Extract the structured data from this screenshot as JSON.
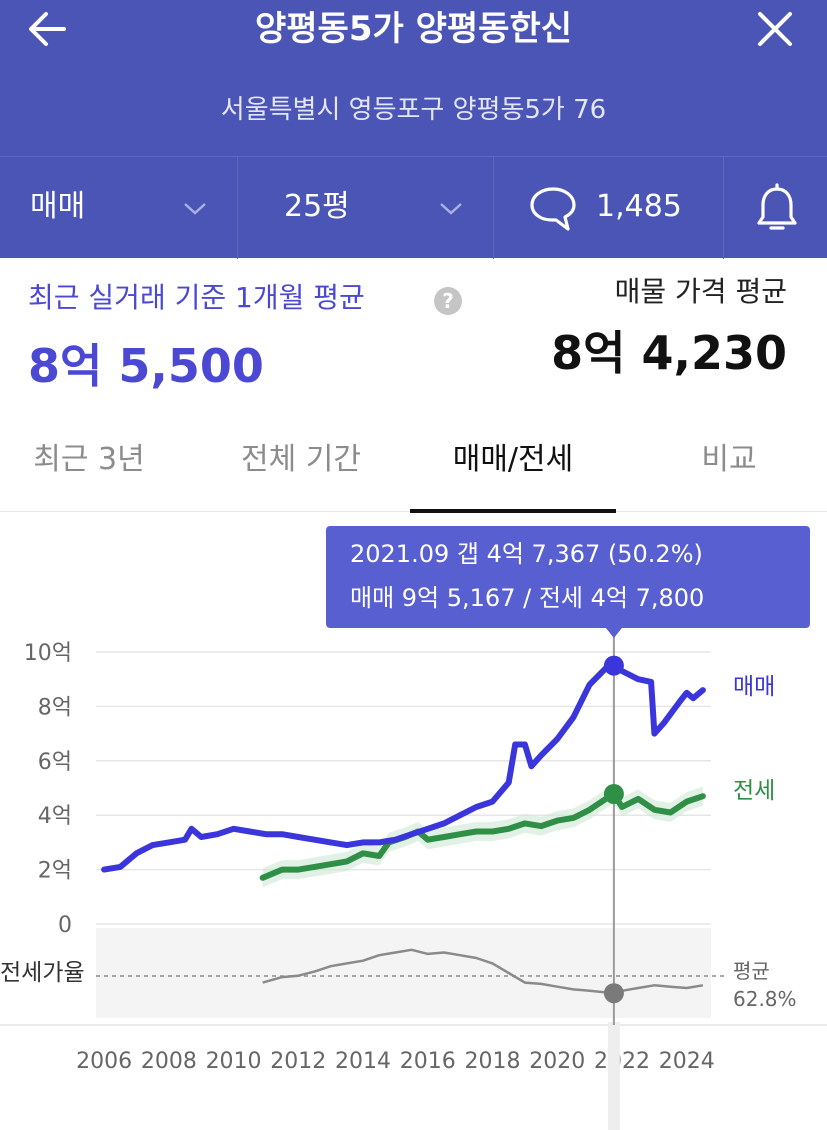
{
  "header": {
    "title": "양평동5가 양평동한신",
    "address": "서울특별시 영등포구 양평동5가 76"
  },
  "filters": {
    "trade_type": "매매",
    "area": "25평",
    "comment_count": "1,485"
  },
  "summary": {
    "recent_label": "최근 실거래 기준 1개월 평균",
    "recent_price": "8억 5,500",
    "listing_label": "매물 가격 평균",
    "listing_price": "8억 4,230"
  },
  "tabs": [
    {
      "label": "최근 3년",
      "active": false
    },
    {
      "label": "전체 기간",
      "active": false
    },
    {
      "label": "매매/전세",
      "active": true
    },
    {
      "label": "비교",
      "active": false
    }
  ],
  "colors": {
    "header_bg": "#4b55b5",
    "sale": "#3b36dc",
    "jeonse": "#2f8f46",
    "ratio": "#8a8a8a",
    "tooltip_bg": "#575fd1"
  },
  "chart_data": {
    "type": "line",
    "tooltip": {
      "line1": "2021.09  갭 4억 7,367 (50.2%)",
      "line2": "매매 9억 5,167 / 전세 4억 7,800",
      "x": 2021.75
    },
    "x_ticks": [
      2006,
      2008,
      2010,
      2012,
      2014,
      2016,
      2018,
      2020,
      2022,
      2024
    ],
    "y_ticks": [
      {
        "v": 10,
        "label": "10억"
      },
      {
        "v": 8,
        "label": "8억"
      },
      {
        "v": 6,
        "label": "6억"
      },
      {
        "v": 4,
        "label": "4억"
      },
      {
        "v": 2,
        "label": "2억"
      },
      {
        "v": 0,
        "label": "0"
      }
    ],
    "xlim": [
      2005.75,
      2024.75
    ],
    "ylim": [
      0,
      10
    ],
    "series": [
      {
        "name": "매매",
        "unit": "억",
        "points": [
          [
            2006.0,
            2.0
          ],
          [
            2006.5,
            2.1
          ],
          [
            2007.0,
            2.6
          ],
          [
            2007.5,
            2.9
          ],
          [
            2008.0,
            3.0
          ],
          [
            2008.5,
            3.1
          ],
          [
            2008.7,
            3.5
          ],
          [
            2009.0,
            3.2
          ],
          [
            2009.5,
            3.3
          ],
          [
            2010.0,
            3.5
          ],
          [
            2010.5,
            3.4
          ],
          [
            2011.0,
            3.3
          ],
          [
            2011.5,
            3.3
          ],
          [
            2012.0,
            3.2
          ],
          [
            2012.5,
            3.1
          ],
          [
            2013.0,
            3.0
          ],
          [
            2013.5,
            2.9
          ],
          [
            2014.0,
            3.0
          ],
          [
            2014.5,
            3.0
          ],
          [
            2015.0,
            3.1
          ],
          [
            2015.5,
            3.3
          ],
          [
            2016.0,
            3.5
          ],
          [
            2016.5,
            3.7
          ],
          [
            2017.0,
            4.0
          ],
          [
            2017.5,
            4.3
          ],
          [
            2018.0,
            4.5
          ],
          [
            2018.5,
            5.2
          ],
          [
            2018.7,
            6.6
          ],
          [
            2019.0,
            6.6
          ],
          [
            2019.2,
            5.8
          ],
          [
            2019.5,
            6.2
          ],
          [
            2020.0,
            6.8
          ],
          [
            2020.5,
            7.6
          ],
          [
            2021.0,
            8.8
          ],
          [
            2021.5,
            9.4
          ],
          [
            2021.75,
            9.5
          ],
          [
            2022.0,
            9.3
          ],
          [
            2022.5,
            9.0
          ],
          [
            2022.9,
            8.9
          ],
          [
            2023.0,
            7.0
          ],
          [
            2023.3,
            7.4
          ],
          [
            2023.8,
            8.2
          ],
          [
            2024.0,
            8.5
          ],
          [
            2024.2,
            8.3
          ],
          [
            2024.5,
            8.6
          ]
        ]
      },
      {
        "name": "전세",
        "unit": "억",
        "points": [
          [
            2010.9,
            1.7
          ],
          [
            2011.5,
            2.0
          ],
          [
            2012.0,
            2.0
          ],
          [
            2012.5,
            2.1
          ],
          [
            2013.0,
            2.2
          ],
          [
            2013.5,
            2.3
          ],
          [
            2014.0,
            2.6
          ],
          [
            2014.5,
            2.5
          ],
          [
            2014.8,
            3.0
          ],
          [
            2015.3,
            3.2
          ],
          [
            2015.7,
            3.4
          ],
          [
            2016.0,
            3.1
          ],
          [
            2016.5,
            3.2
          ],
          [
            2017.0,
            3.3
          ],
          [
            2017.5,
            3.4
          ],
          [
            2018.0,
            3.4
          ],
          [
            2018.5,
            3.5
          ],
          [
            2019.0,
            3.7
          ],
          [
            2019.5,
            3.6
          ],
          [
            2020.0,
            3.8
          ],
          [
            2020.5,
            3.9
          ],
          [
            2021.0,
            4.2
          ],
          [
            2021.5,
            4.6
          ],
          [
            2021.75,
            4.78
          ],
          [
            2022.0,
            4.3
          ],
          [
            2022.5,
            4.6
          ],
          [
            2023.0,
            4.2
          ],
          [
            2023.5,
            4.1
          ],
          [
            2024.0,
            4.5
          ],
          [
            2024.5,
            4.7
          ]
        ]
      },
      {
        "name": "전세가율",
        "unit": "%",
        "points": [
          [
            2010.9,
            58
          ],
          [
            2011.5,
            62
          ],
          [
            2012.0,
            63
          ],
          [
            2012.5,
            66
          ],
          [
            2013.0,
            70
          ],
          [
            2013.5,
            72
          ],
          [
            2014.0,
            74
          ],
          [
            2014.5,
            78
          ],
          [
            2015.0,
            80
          ],
          [
            2015.5,
            82
          ],
          [
            2016.0,
            79
          ],
          [
            2016.5,
            80
          ],
          [
            2017.0,
            78
          ],
          [
            2017.5,
            76
          ],
          [
            2018.0,
            72
          ],
          [
            2018.5,
            65
          ],
          [
            2019.0,
            58
          ],
          [
            2019.5,
            57
          ],
          [
            2020.0,
            55
          ],
          [
            2020.5,
            53
          ],
          [
            2021.0,
            52
          ],
          [
            2021.75,
            50.2
          ],
          [
            2022.0,
            52
          ],
          [
            2022.5,
            54
          ],
          [
            2023.0,
            56
          ],
          [
            2023.5,
            55
          ],
          [
            2024.0,
            54
          ],
          [
            2024.5,
            56
          ]
        ]
      }
    ],
    "ratio_average": {
      "label_line1": "평균",
      "label_line2": "62.8%",
      "value": 62.8
    },
    "ratio_ylim": [
      35,
      95
    ]
  }
}
